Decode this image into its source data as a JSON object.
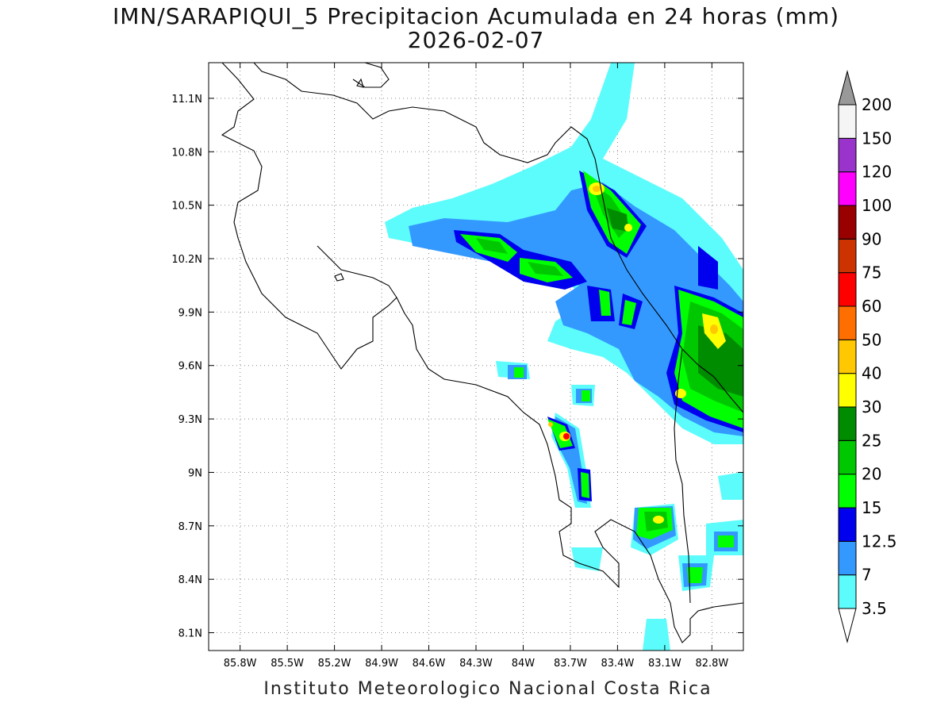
{
  "title": {
    "line1": "IMN/SARAPIQUI_5 Precipitacion Acumulada en 24 horas (mm)",
    "line2": "2026-02-07"
  },
  "credit": "Instituto Meteorologico Nacional Costa Rica",
  "map": {
    "lon_range": [
      -86.0,
      -82.6
    ],
    "lat_range": [
      8.0,
      11.3
    ],
    "lon_ticks": [
      {
        "value": -85.8,
        "label": "85.8W"
      },
      {
        "value": -85.5,
        "label": "85.5W"
      },
      {
        "value": -85.2,
        "label": "85.2W"
      },
      {
        "value": -84.9,
        "label": "84.9W"
      },
      {
        "value": -84.6,
        "label": "84.6W"
      },
      {
        "value": -84.3,
        "label": "84.3W"
      },
      {
        "value": -84.0,
        "label": "84W"
      },
      {
        "value": -83.7,
        "label": "83.7W"
      },
      {
        "value": -83.4,
        "label": "83.4W"
      },
      {
        "value": -83.1,
        "label": "83.1W"
      },
      {
        "value": -82.8,
        "label": "82.8W"
      }
    ],
    "lat_ticks": [
      {
        "value": 11.1,
        "label": "11.1N"
      },
      {
        "value": 10.8,
        "label": "10.8N"
      },
      {
        "value": 10.5,
        "label": "10.5N"
      },
      {
        "value": 10.2,
        "label": "10.2N"
      },
      {
        "value": 9.9,
        "label": "9.9N"
      },
      {
        "value": 9.6,
        "label": "9.6N"
      },
      {
        "value": 9.3,
        "label": "9.3N"
      },
      {
        "value": 9.0,
        "label": "9N"
      },
      {
        "value": 8.7,
        "label": "8.7N"
      },
      {
        "value": 8.4,
        "label": "8.4N"
      },
      {
        "value": 8.1,
        "label": "8.1N"
      }
    ],
    "grid": "dotted"
  },
  "colorbar": {
    "levels": [
      {
        "label": "3.5",
        "color": "#5cfcfc"
      },
      {
        "label": "7",
        "color": "#3399ff"
      },
      {
        "label": "12.5",
        "color": "#0000ee"
      },
      {
        "label": "15",
        "color": "#00ff00"
      },
      {
        "label": "20",
        "color": "#00c800"
      },
      {
        "label": "25",
        "color": "#008c00"
      },
      {
        "label": "30",
        "color": "#ffff00"
      },
      {
        "label": "40",
        "color": "#ffc800"
      },
      {
        "label": "50",
        "color": "#ff6e00"
      },
      {
        "label": "60",
        "color": "#ff0000"
      },
      {
        "label": "75",
        "color": "#cc3300"
      },
      {
        "label": "90",
        "color": "#990000"
      },
      {
        "label": "100",
        "color": "#ff00ff"
      },
      {
        "label": "120",
        "color": "#9933cc"
      },
      {
        "label": "150",
        "color": "#f5f5f5"
      },
      {
        "label": "200",
        "color": "#999999"
      }
    ],
    "below_color": "#ffffff"
  }
}
